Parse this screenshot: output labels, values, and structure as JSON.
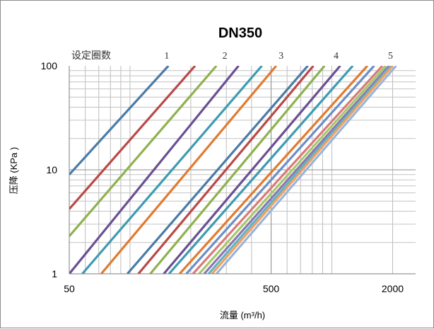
{
  "chart_data": {
    "type": "line",
    "title": "DN350",
    "xlabel": "流量 (m³/h)",
    "ylabel": "压降 (KPa )",
    "x_scale": "log",
    "y_scale": "log",
    "xlim": [
      50,
      2600
    ],
    "ylim": [
      1,
      100
    ],
    "x_ticks": [
      "50",
      "500",
      "2000"
    ],
    "y_ticks": [
      "1",
      "10",
      "100"
    ],
    "grid": true,
    "legend": "none",
    "turns_label": "设定圈数",
    "turn_marks": [
      {
        "label": "1",
        "x": 152
      },
      {
        "label": "2",
        "x": 295
      },
      {
        "label": "3",
        "x": 560
      },
      {
        "label": "4",
        "x": 1050
      },
      {
        "label": "5",
        "x": 1950
      }
    ],
    "series": [
      {
        "color": "#4a7ba7",
        "x": [
          50,
          155
        ],
        "y": [
          9.0,
          100
        ]
      },
      {
        "color": "#b94a48",
        "x": [
          50,
          210
        ],
        "y": [
          4.2,
          100
        ]
      },
      {
        "color": "#8fb14f",
        "x": [
          50,
          268
        ],
        "y": [
          2.3,
          100
        ]
      },
      {
        "color": "#6a4f92",
        "x": [
          50,
          345
        ],
        "y": [
          1.0,
          100
        ]
      },
      {
        "color": "#3e9bb1",
        "x": [
          58,
          450
        ],
        "y": [
          1.0,
          100
        ]
      },
      {
        "color": "#e07b30",
        "x": [
          72,
          530
        ],
        "y": [
          1.0,
          100
        ]
      },
      {
        "color": "#4a7ba7",
        "x": [
          97,
          760
        ],
        "y": [
          1.0,
          100
        ]
      },
      {
        "color": "#b94a48",
        "x": [
          110,
          810
        ],
        "y": [
          1.0,
          100
        ]
      },
      {
        "color": "#8fb14f",
        "x": [
          126,
          920
        ],
        "y": [
          1.0,
          100
        ]
      },
      {
        "color": "#6a4f92",
        "x": [
          147,
          1100
        ],
        "y": [
          1.0,
          100
        ]
      },
      {
        "color": "#3e9bb1",
        "x": [
          156,
          1270
        ],
        "y": [
          1.0,
          100
        ]
      },
      {
        "color": "#e07b30",
        "x": [
          176,
          1500
        ],
        "y": [
          1.0,
          100
        ]
      },
      {
        "color": "#6b8fc4",
        "x": [
          190,
          1620
        ],
        "y": [
          1.0,
          100
        ]
      },
      {
        "color": "#d97a7a",
        "x": [
          205,
          1780
        ],
        "y": [
          1.0,
          100
        ]
      },
      {
        "color": "#a6c86a",
        "x": [
          220,
          1850
        ],
        "y": [
          1.0,
          100
        ]
      },
      {
        "color": "#8b77b0",
        "x": [
          233,
          1920
        ],
        "y": [
          1.0,
          100
        ]
      },
      {
        "color": "#5fb4c7",
        "x": [
          245,
          1960
        ],
        "y": [
          1.0,
          100
        ]
      },
      {
        "color": "#f0a060",
        "x": [
          255,
          2000
        ],
        "y": [
          1.0,
          100
        ]
      },
      {
        "color": "#9ab4d8",
        "x": [
          268,
          2080
        ],
        "y": [
          1.0,
          100
        ]
      }
    ]
  }
}
